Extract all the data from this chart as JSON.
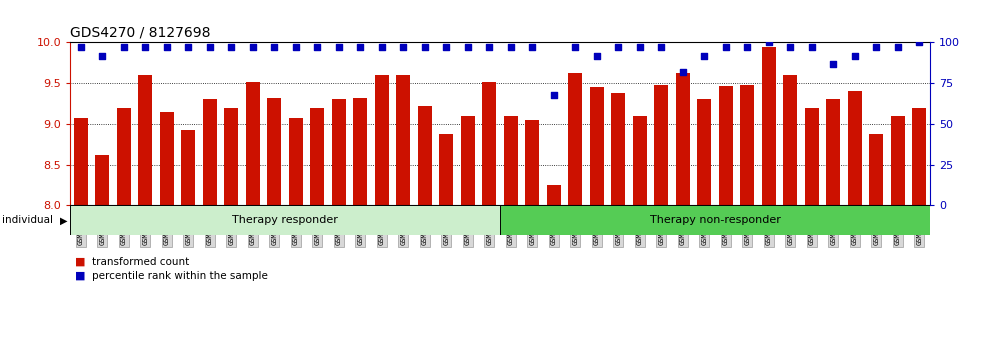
{
  "title": "GDS4270 / 8127698",
  "samples": [
    "GSM530838",
    "GSM530839",
    "GSM530840",
    "GSM530841",
    "GSM530842",
    "GSM530843",
    "GSM530844",
    "GSM530845",
    "GSM530846",
    "GSM530847",
    "GSM530848",
    "GSM530849",
    "GSM530850",
    "GSM530851",
    "GSM530852",
    "GSM530853",
    "GSM530854",
    "GSM530855",
    "GSM530856",
    "GSM530857",
    "GSM530858",
    "GSM530859",
    "GSM530860",
    "GSM530861",
    "GSM530862",
    "GSM530863",
    "GSM530864",
    "GSM530865",
    "GSM530866",
    "GSM530867",
    "GSM530868",
    "GSM530869",
    "GSM530870",
    "GSM530871",
    "GSM530872",
    "GSM530873",
    "GSM530874",
    "GSM530875",
    "GSM530876",
    "GSM530877"
  ],
  "bar_values": [
    9.07,
    8.62,
    9.2,
    9.6,
    9.15,
    8.92,
    9.3,
    9.2,
    9.52,
    9.32,
    9.07,
    9.2,
    9.3,
    9.32,
    9.6,
    9.6,
    9.22,
    8.88,
    9.1,
    9.52,
    9.1,
    9.05,
    8.25,
    9.62,
    9.45,
    9.38,
    9.1,
    9.48,
    9.62,
    9.3,
    9.47,
    9.48,
    9.95,
    9.6,
    9.2,
    9.3,
    9.4,
    8.88,
    9.1,
    9.2
  ],
  "percentile_values": [
    97,
    92,
    97,
    97,
    97,
    97,
    97,
    97,
    97,
    97,
    97,
    97,
    97,
    97,
    97,
    97,
    97,
    97,
    97,
    97,
    97,
    97,
    68,
    97,
    92,
    97,
    97,
    97,
    82,
    92,
    97,
    97,
    100,
    97,
    97,
    87,
    92,
    97,
    97,
    100
  ],
  "group1_count": 20,
  "group1_label": "Therapy responder",
  "group2_label": "Therapy non-responder",
  "group1_color": "#cceecc",
  "group2_color": "#55cc55",
  "ylim_left": [
    8.0,
    10.0
  ],
  "ylim_right": [
    0,
    100
  ],
  "yticks_left": [
    8.0,
    8.5,
    9.0,
    9.5,
    10.0
  ],
  "yticks_right": [
    0,
    25,
    50,
    75,
    100
  ],
  "bar_color": "#cc1100",
  "dot_color": "#0000bb",
  "bar_width": 0.65,
  "tick_label_fontsize": 5.0,
  "title_fontsize": 10,
  "left_tick_color": "#cc1100",
  "right_tick_color": "#0000bb",
  "gridline_color": "black",
  "gridline_lw": 0.6,
  "gridlines": [
    8.5,
    9.0,
    9.5
  ]
}
